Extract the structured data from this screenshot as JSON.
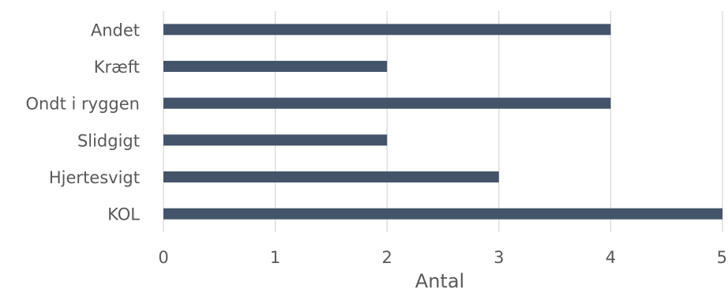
{
  "chart_data": {
    "type": "bar",
    "orientation": "horizontal",
    "categories": [
      "Andet",
      "Kræft",
      "Ondt i ryggen",
      "Slidgigt",
      "Hjertesvigt",
      "KOL"
    ],
    "values": [
      4,
      2,
      4,
      2,
      3,
      5
    ],
    "xlabel": "Antal",
    "ylabel": "",
    "xlim": [
      0,
      5
    ],
    "xticks": [
      "0",
      "1",
      "2",
      "3",
      "4",
      "5"
    ],
    "grid": "vertical",
    "legend": "none",
    "bar_color": "#44546a"
  }
}
